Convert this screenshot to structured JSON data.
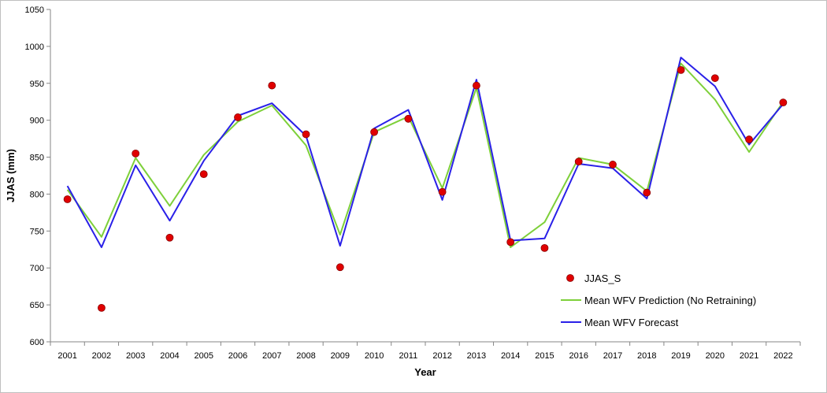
{
  "chart_data": {
    "type": "line",
    "xlabel": "Year",
    "ylabel": "JJAS (mm)",
    "ylim": [
      600,
      1050
    ],
    "yticks": [
      600,
      650,
      700,
      750,
      800,
      850,
      900,
      950,
      1000,
      1050
    ],
    "categories": [
      "2001",
      "2002",
      "2003",
      "2004",
      "2005",
      "2006",
      "2007",
      "2008",
      "2009",
      "2010",
      "2011",
      "2012",
      "2013",
      "2014",
      "2015",
      "2016",
      "2017",
      "2018",
      "2019",
      "2020",
      "2021",
      "2022"
    ],
    "grid": false,
    "legend_position": "bottom-right",
    "series": [
      {
        "name": "JJAS_S",
        "kind": "scatter",
        "color": "#e00000",
        "values": [
          793,
          646,
          855,
          741,
          827,
          904,
          947,
          881,
          701,
          884,
          902,
          803,
          947,
          735,
          727,
          844,
          840,
          802,
          968,
          957,
          874,
          924
        ]
      },
      {
        "name": "Mean WFV Prediction (No Retraining)",
        "kind": "line",
        "color": "#7ed03a",
        "values": [
          806,
          742,
          849,
          784,
          853,
          898,
          920,
          866,
          745,
          884,
          905,
          808,
          944,
          728,
          762,
          849,
          840,
          804,
          977,
          928,
          857,
          925
        ]
      },
      {
        "name": "Mean WFV Forecast",
        "kind": "line",
        "color": "#2a20e8",
        "values": [
          811,
          728,
          839,
          764,
          845,
          906,
          923,
          879,
          730,
          889,
          914,
          792,
          955,
          737,
          740,
          841,
          835,
          794,
          985,
          946,
          867,
          922
        ]
      }
    ]
  }
}
